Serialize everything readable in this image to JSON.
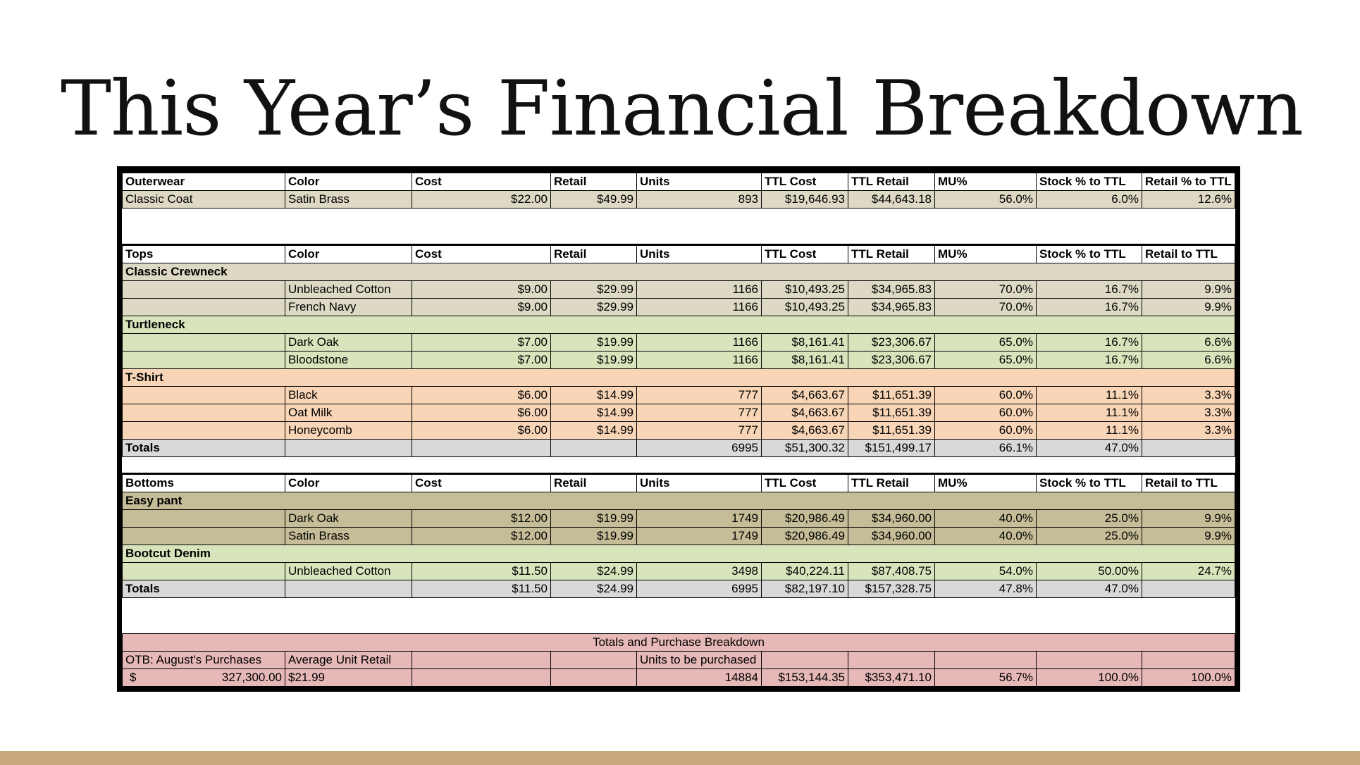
{
  "title": "This Year’s Financial Breakdown",
  "outerwear": {
    "color": "#ddd9c4",
    "header": [
      "Outerwear",
      "Color",
      "Cost",
      "Retail",
      "Units",
      "TTL Cost",
      "TTL Retail",
      "MU%",
      "Stock % to TTL",
      "Retail % to TTL"
    ],
    "rows": [
      [
        "Classic Coat",
        "Satin Brass",
        "$22.00",
        "$49.99",
        "893",
        "$19,646.93",
        "$44,643.18",
        "56.0%",
        "6.0%",
        "12.6%"
      ]
    ]
  },
  "tops": {
    "totals_color": "#d9d9d9",
    "header": [
      "Tops",
      "Color",
      "Cost",
      "Retail",
      "Units",
      "TTL Cost",
      "TTL Retail",
      "MU%",
      "Stock % to TTL",
      "Retail to TTL"
    ],
    "groups": [
      {
        "name": "Classic Crewneck",
        "color": "#ddd9c4",
        "rows": [
          [
            null,
            "Unbleached Cotton",
            "$9.00",
            "$29.99",
            "1166",
            "$10,493.25",
            "$34,965.83",
            "70.0%",
            "16.7%",
            "9.9%"
          ],
          [
            null,
            "French Navy",
            "$9.00",
            "$29.99",
            "1166",
            "$10,493.25",
            "$34,965.83",
            "70.0%",
            "16.7%",
            "9.9%"
          ]
        ]
      },
      {
        "name": "Turtleneck",
        "color": "#d8e4bc",
        "rows": [
          [
            null,
            "Dark Oak",
            "$7.00",
            "$19.99",
            "1166",
            "$8,161.41",
            "$23,306.67",
            "65.0%",
            "16.7%",
            "6.6%"
          ],
          [
            null,
            "Bloodstone",
            "$7.00",
            "$19.99",
            "1166",
            "$8,161.41",
            "$23,306.67",
            "65.0%",
            "16.7%",
            "6.6%"
          ]
        ]
      },
      {
        "name": "T-Shirt",
        "color": "#f8d5b6",
        "rows": [
          [
            null,
            "Black",
            "$6.00",
            "$14.99",
            "777",
            "$4,663.67",
            "$11,651.39",
            "60.0%",
            "11.1%",
            "3.3%"
          ],
          [
            null,
            "Oat Milk",
            "$6.00",
            "$14.99",
            "777",
            "$4,663.67",
            "$11,651.39",
            "60.0%",
            "11.1%",
            "3.3%"
          ],
          [
            null,
            "Honeycomb",
            "$6.00",
            "$14.99",
            "777",
            "$4,663.67",
            "$11,651.39",
            "60.0%",
            "11.1%",
            "3.3%"
          ]
        ]
      }
    ],
    "totals": [
      "Totals",
      null,
      null,
      null,
      "6995",
      "$51,300.32",
      "$151,499.17",
      "66.1%",
      "47.0%",
      null
    ]
  },
  "bottoms": {
    "totals_color": "#d9d9d9",
    "header": [
      "Bottoms",
      "Color",
      "Cost",
      "Retail",
      "Units",
      "TTL Cost",
      "TTL Retail",
      "MU%",
      "Stock % to TTL",
      "Retail to TTL"
    ],
    "groups": [
      {
        "name": "Easy pant",
        "color": "#c4bd97",
        "rows": [
          [
            null,
            "Dark Oak",
            "$12.00",
            "$19.99",
            "1749",
            "$20,986.49",
            "$34,960.00",
            "40.0%",
            "25.0%",
            "9.9%"
          ],
          [
            null,
            "Satin Brass",
            "$12.00",
            "$19.99",
            "1749",
            "$20,986.49",
            "$34,960.00",
            "40.0%",
            "25.0%",
            "9.9%"
          ]
        ]
      },
      {
        "name": "Bootcut Denim",
        "color": "#d8e4bc",
        "rows": [
          [
            null,
            "Unbleached Cotton",
            "$11.50",
            "$24.99",
            "3498",
            "$40,224.11",
            "$87,408.75",
            "54.0%",
            "50.00%",
            "24.7%"
          ]
        ]
      }
    ],
    "totals": [
      "Totals",
      null,
      "$11.50",
      "$24.99",
      "6995",
      "$82,197.10",
      "$157,328.75",
      "47.8%",
      "47.0%",
      null
    ]
  },
  "summary": {
    "title": "Totals and Purchase Breakdown",
    "color": "#e6b8b7",
    "labels": [
      "OTB: August's Purchases",
      "Average Unit Retail",
      null,
      null,
      "Units to be purchased",
      null,
      null,
      null,
      null,
      null
    ],
    "values": [
      {
        "currency": "$",
        "amount": "327,300.00"
      },
      "$21.99",
      null,
      null,
      "14884",
      "$153,144.35",
      "$353,471.10",
      "56.7%",
      "100.0%",
      "100.0%"
    ]
  }
}
